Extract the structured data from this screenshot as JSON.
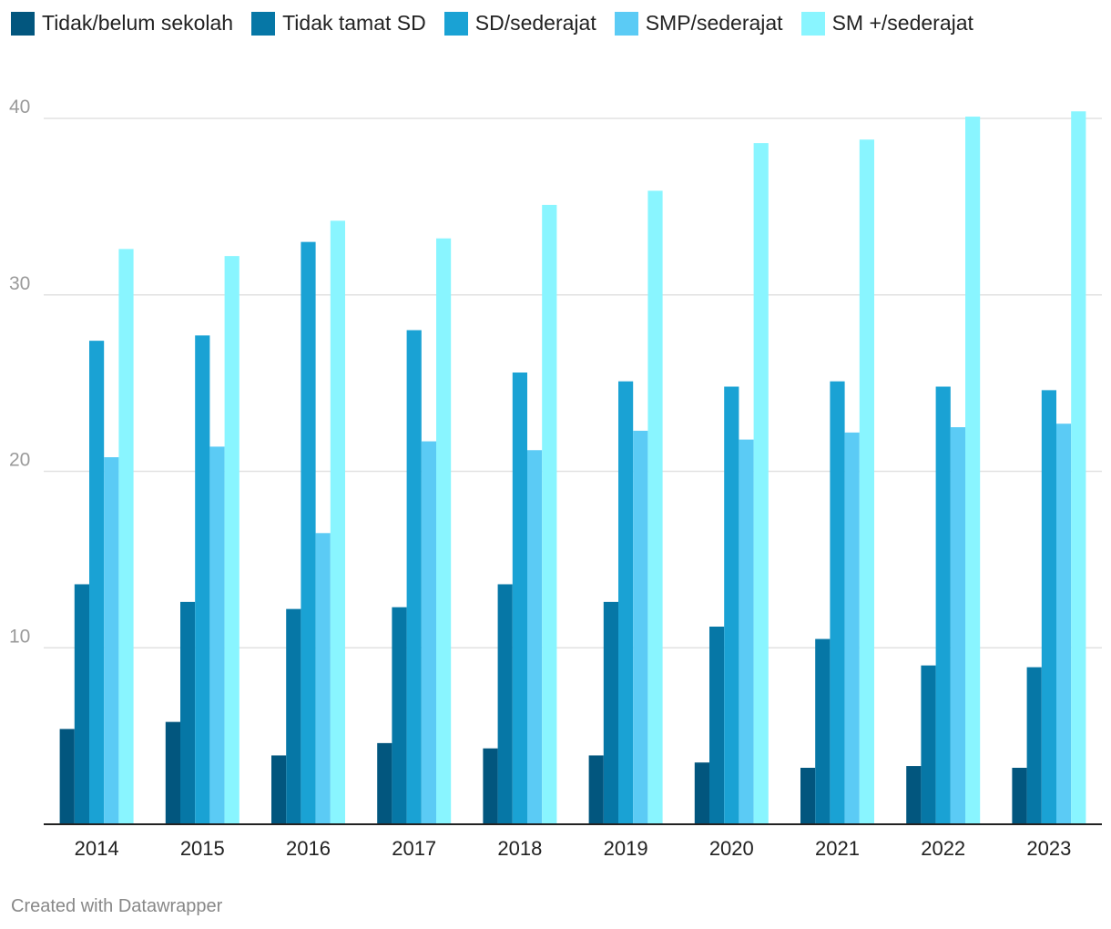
{
  "chart_data": {
    "type": "bar",
    "categories": [
      "2014",
      "2015",
      "2016",
      "2017",
      "2018",
      "2019",
      "2020",
      "2021",
      "2022",
      "2023"
    ],
    "series": [
      {
        "name": "Tidak/belum sekolah",
        "color": "#02567e",
        "values": [
          5.4,
          5.8,
          3.9,
          4.6,
          4.3,
          3.9,
          3.5,
          3.2,
          3.3,
          3.2
        ]
      },
      {
        "name": "Tidak tamat SD",
        "color": "#0677a6",
        "values": [
          13.6,
          12.6,
          12.2,
          12.3,
          13.6,
          12.6,
          11.2,
          10.5,
          9.0,
          8.9
        ]
      },
      {
        "name": "SD/sederajat",
        "color": "#1aa2d4",
        "values": [
          27.4,
          27.7,
          33.0,
          28.0,
          25.6,
          25.1,
          24.8,
          25.1,
          24.8,
          24.6
        ]
      },
      {
        "name": "SMP/sederajat",
        "color": "#5bcbf5",
        "values": [
          20.8,
          21.4,
          16.5,
          21.7,
          21.2,
          22.3,
          21.8,
          22.2,
          22.5,
          22.7
        ]
      },
      {
        "name": "SM +/sederajat",
        "color": "#89f5ff",
        "values": [
          32.6,
          32.2,
          34.2,
          33.2,
          35.1,
          35.9,
          38.6,
          38.8,
          40.1,
          40.4
        ]
      }
    ],
    "y_ticks": [
      "10",
      "20",
      "30",
      "40"
    ],
    "ylim": [
      0,
      40
    ],
    "grid": true,
    "legend_position": "top-left"
  },
  "footer": {
    "credit": "Created with Datawrapper"
  }
}
